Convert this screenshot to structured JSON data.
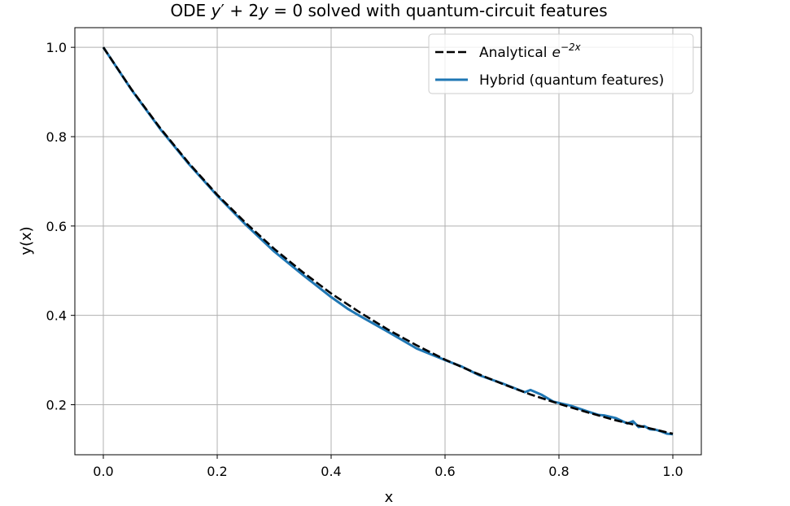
{
  "chart_data": {
    "type": "line",
    "title": {
      "prefix": "ODE ",
      "y1": "y",
      "prime": "′",
      "mid": " + 2",
      "y2": "y",
      "eq": " = 0",
      "suffix": " solved with quantum-circuit features"
    },
    "xlabel": "x",
    "ylabel": "y(x)",
    "xlim": [
      -0.05,
      1.05
    ],
    "ylim": [
      0.088,
      1.044
    ],
    "xticks": [
      0.0,
      0.2,
      0.4,
      0.6,
      0.8,
      1.0
    ],
    "xtick_labels": [
      "0.0",
      "0.2",
      "0.4",
      "0.6",
      "0.8",
      "1.0"
    ],
    "yticks": [
      0.2,
      0.4,
      0.6,
      0.8,
      1.0
    ],
    "ytick_labels": [
      "0.2",
      "0.4",
      "0.6",
      "0.8",
      "1.0"
    ],
    "grid": true,
    "legend": "top-right",
    "series": [
      {
        "name": "Analytical",
        "name_exp_base": "e",
        "name_exp_power": "−2x",
        "style": "dashed",
        "color": "#000000",
        "function": "exp(-2x)",
        "x": [
          0.0,
          0.05,
          0.1,
          0.15,
          0.2,
          0.25,
          0.3,
          0.35,
          0.4,
          0.45,
          0.5,
          0.55,
          0.6,
          0.65,
          0.7,
          0.75,
          0.8,
          0.85,
          0.9,
          0.95,
          1.0
        ],
        "y": [
          1.0,
          0.905,
          0.819,
          0.741,
          0.67,
          0.607,
          0.549,
          0.497,
          0.449,
          0.407,
          0.368,
          0.333,
          0.301,
          0.273,
          0.247,
          0.223,
          0.202,
          0.183,
          0.165,
          0.15,
          0.135
        ]
      },
      {
        "name": "Hybrid (quantum features)",
        "style": "solid",
        "color": "#1f77b4",
        "x": [
          0.0,
          0.05,
          0.1,
          0.15,
          0.2,
          0.25,
          0.3,
          0.35,
          0.4,
          0.43,
          0.45,
          0.5,
          0.55,
          0.6,
          0.63,
          0.66,
          0.7,
          0.72,
          0.74,
          0.75,
          0.77,
          0.79,
          0.8,
          0.82,
          0.85,
          0.87,
          0.88,
          0.9,
          0.91,
          0.92,
          0.93,
          0.94,
          0.95,
          0.96,
          0.97,
          0.98,
          0.99,
          1.0
        ],
        "y": [
          1.0,
          0.904,
          0.817,
          0.739,
          0.668,
          0.603,
          0.543,
          0.491,
          0.441,
          0.414,
          0.399,
          0.363,
          0.326,
          0.3,
          0.285,
          0.266,
          0.248,
          0.238,
          0.228,
          0.233,
          0.222,
          0.207,
          0.204,
          0.198,
          0.185,
          0.177,
          0.176,
          0.17,
          0.164,
          0.158,
          0.163,
          0.15,
          0.152,
          0.145,
          0.144,
          0.14,
          0.135,
          0.134
        ]
      }
    ]
  }
}
